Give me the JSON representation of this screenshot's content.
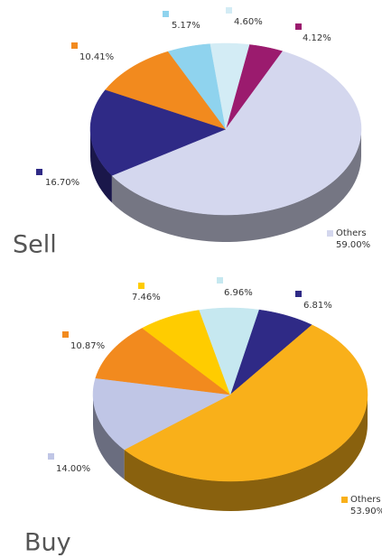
{
  "chart_data": [
    {
      "type": "pie",
      "title": "Sell",
      "categories": [
        null,
        "Others",
        null,
        null,
        null,
        null
      ],
      "values": [
        4.12,
        59.0,
        16.7,
        10.41,
        5.17,
        4.6
      ],
      "value_labels": [
        "4.12%",
        "59.00%",
        "16.70%",
        "10.41%",
        "5.17%",
        "4.60%"
      ],
      "colors": [
        "#9b1b6e",
        "#d4d7ee",
        "#2f2a86",
        "#f28a1e",
        "#8fd3ee",
        "#d3ecf5"
      ]
    },
    {
      "type": "pie",
      "title": "Buy",
      "categories": [
        null,
        "Others",
        null,
        null,
        null,
        null
      ],
      "values": [
        6.81,
        53.9,
        14.0,
        10.87,
        7.46,
        6.96
      ],
      "value_labels": [
        "6.81%",
        "53.90%",
        "14.00%",
        "10.87%",
        "7.46%",
        "6.96%"
      ],
      "colors": [
        "#2f2a86",
        "#f9b01a",
        "#c0c6e6",
        "#f28a1e",
        "#ffcc00",
        "#c6e8f0"
      ]
    }
  ]
}
